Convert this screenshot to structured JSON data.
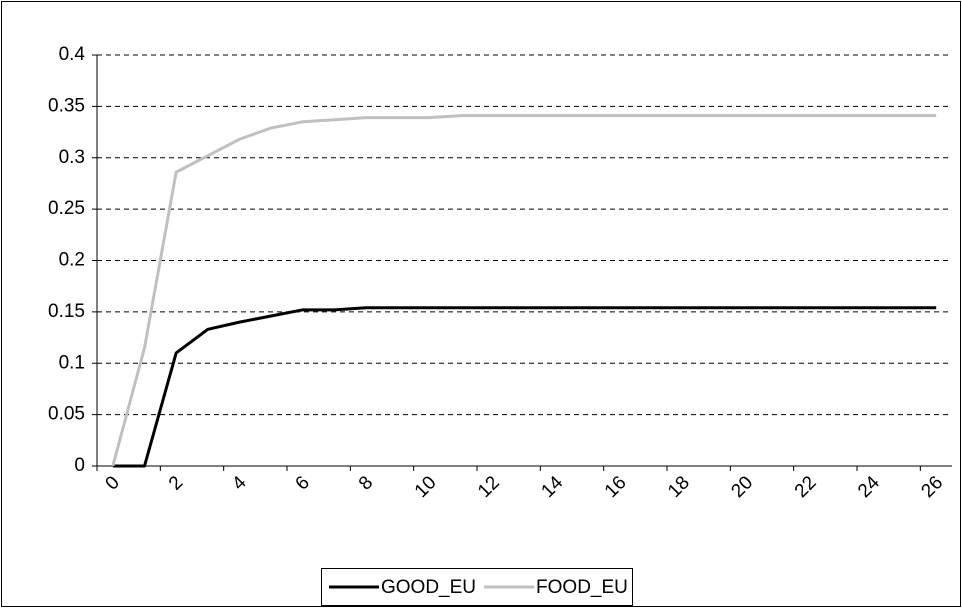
{
  "chart_data": {
    "type": "line",
    "categories": [
      "0",
      null,
      "2",
      null,
      "4",
      null,
      "6",
      null,
      "8",
      null,
      "10",
      null,
      "12",
      null,
      "14",
      null,
      "16",
      null,
      "18",
      null,
      "20",
      null,
      "22",
      null,
      "24",
      null,
      "26"
    ],
    "series": [
      {
        "name": "GOOD_EU",
        "color": "#000000",
        "values": [
          0,
          0,
          0.11,
          0.133,
          0.14,
          0.146,
          0.152,
          0.152,
          0.154,
          0.154,
          0.154,
          0.154,
          0.154,
          0.154,
          0.154,
          0.154,
          0.154,
          0.154,
          0.154,
          0.154,
          0.154,
          0.154,
          0.154,
          0.154,
          0.154,
          0.154,
          0.154
        ]
      },
      {
        "name": "FOOD_EU",
        "color": "#c0c0c0",
        "values": [
          0,
          0.115,
          0.286,
          0.302,
          0.318,
          0.329,
          0.335,
          0.337,
          0.339,
          0.339,
          0.339,
          0.341,
          0.341,
          0.341,
          0.341,
          0.341,
          0.341,
          0.341,
          0.341,
          0.341,
          0.341,
          0.341,
          0.341,
          0.341,
          0.341,
          0.341,
          0.341
        ]
      }
    ],
    "ylim": [
      0,
      0.4
    ],
    "yticks": [
      0,
      0.05,
      0.1,
      0.15,
      0.2,
      0.25,
      0.3,
      0.35,
      0.4
    ],
    "grid": true,
    "legend": "bottom"
  }
}
